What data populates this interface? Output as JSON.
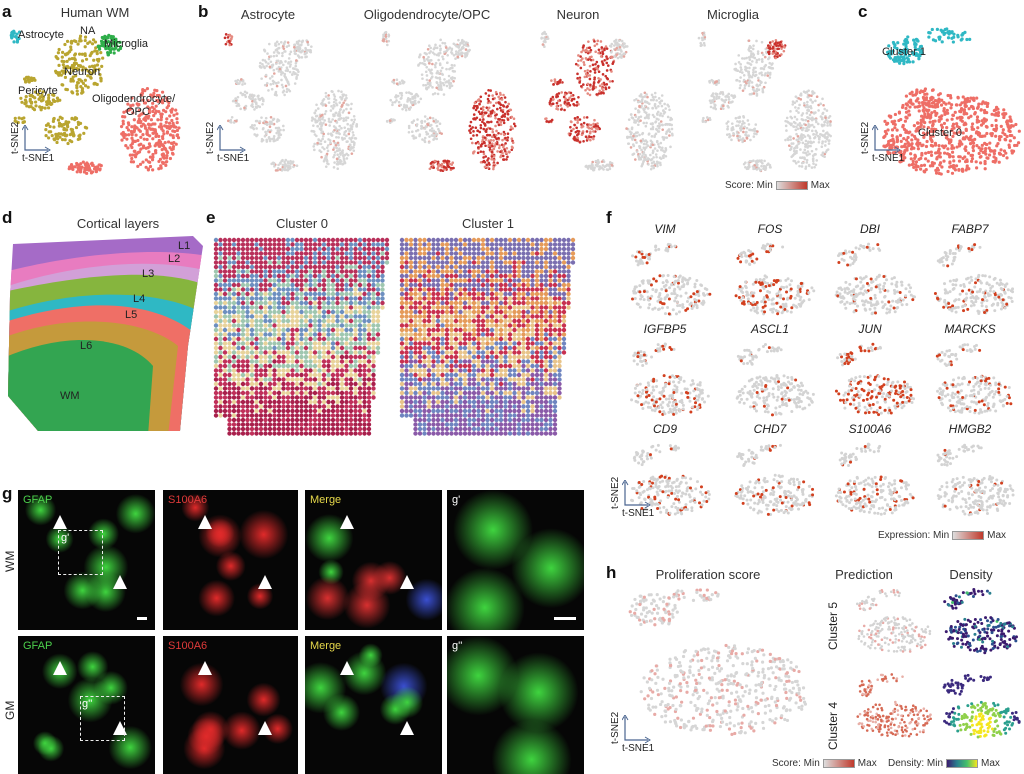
{
  "panel_a": {
    "letter": "a",
    "title": "Human WM",
    "labels": [
      "Astrocyte",
      "NA",
      "Microglia",
      "Neuron",
      "Pericyte",
      "Oligodendrocyte/",
      "OPC"
    ],
    "colors": {
      "astrocyte": "#2fb8c4",
      "neuron": "#b9a530",
      "microglia": "#2fae4a",
      "oligo": "#ee6e66"
    }
  },
  "panel_b": {
    "letter": "b",
    "titles": [
      "Astrocyte",
      "Oligodendrocyte/OPC",
      "Neuron",
      "Microglia"
    ],
    "legend": {
      "prefix": "Score: Min",
      "suffix": "Max"
    }
  },
  "panel_c": {
    "letter": "c",
    "labels": [
      "Cluster 1",
      "Cluster 0"
    ]
  },
  "panel_d": {
    "letter": "d",
    "title": "Cortical layers",
    "layers": [
      "L1",
      "L2",
      "L3",
      "L4",
      "L5",
      "L6",
      "WM"
    ]
  },
  "panel_e": {
    "letter": "e",
    "titles": [
      "Cluster 0",
      "Cluster 1"
    ]
  },
  "panel_f": {
    "letter": "f",
    "genes": [
      "VIM",
      "FOS",
      "DBI",
      "FABP7",
      "IGFBP5",
      "ASCL1",
      "JUN",
      "MARCKS",
      "CD9",
      "CHD7",
      "S100A6",
      "HMGB2"
    ],
    "legend": {
      "prefix": "Expression: Min",
      "suffix": "Max"
    }
  },
  "panel_g": {
    "letter": "g",
    "rows": [
      "WM",
      "GM"
    ],
    "columns": [
      "GFAP",
      "S100A6",
      "Merge"
    ],
    "insets": [
      "g'",
      "g''"
    ]
  },
  "panel_h": {
    "letter": "h",
    "title": "Proliferation score",
    "col_titles": [
      "Prediction",
      "Density"
    ],
    "rows": [
      "Cluster 5",
      "Cluster 4"
    ],
    "legend_score": {
      "prefix": "Score: Min",
      "suffix": "Max"
    },
    "legend_density": {
      "prefix": "Density: Min",
      "suffix": "Max"
    }
  },
  "axes": {
    "y": "t-SNE2",
    "x": "t-SNE1"
  }
}
